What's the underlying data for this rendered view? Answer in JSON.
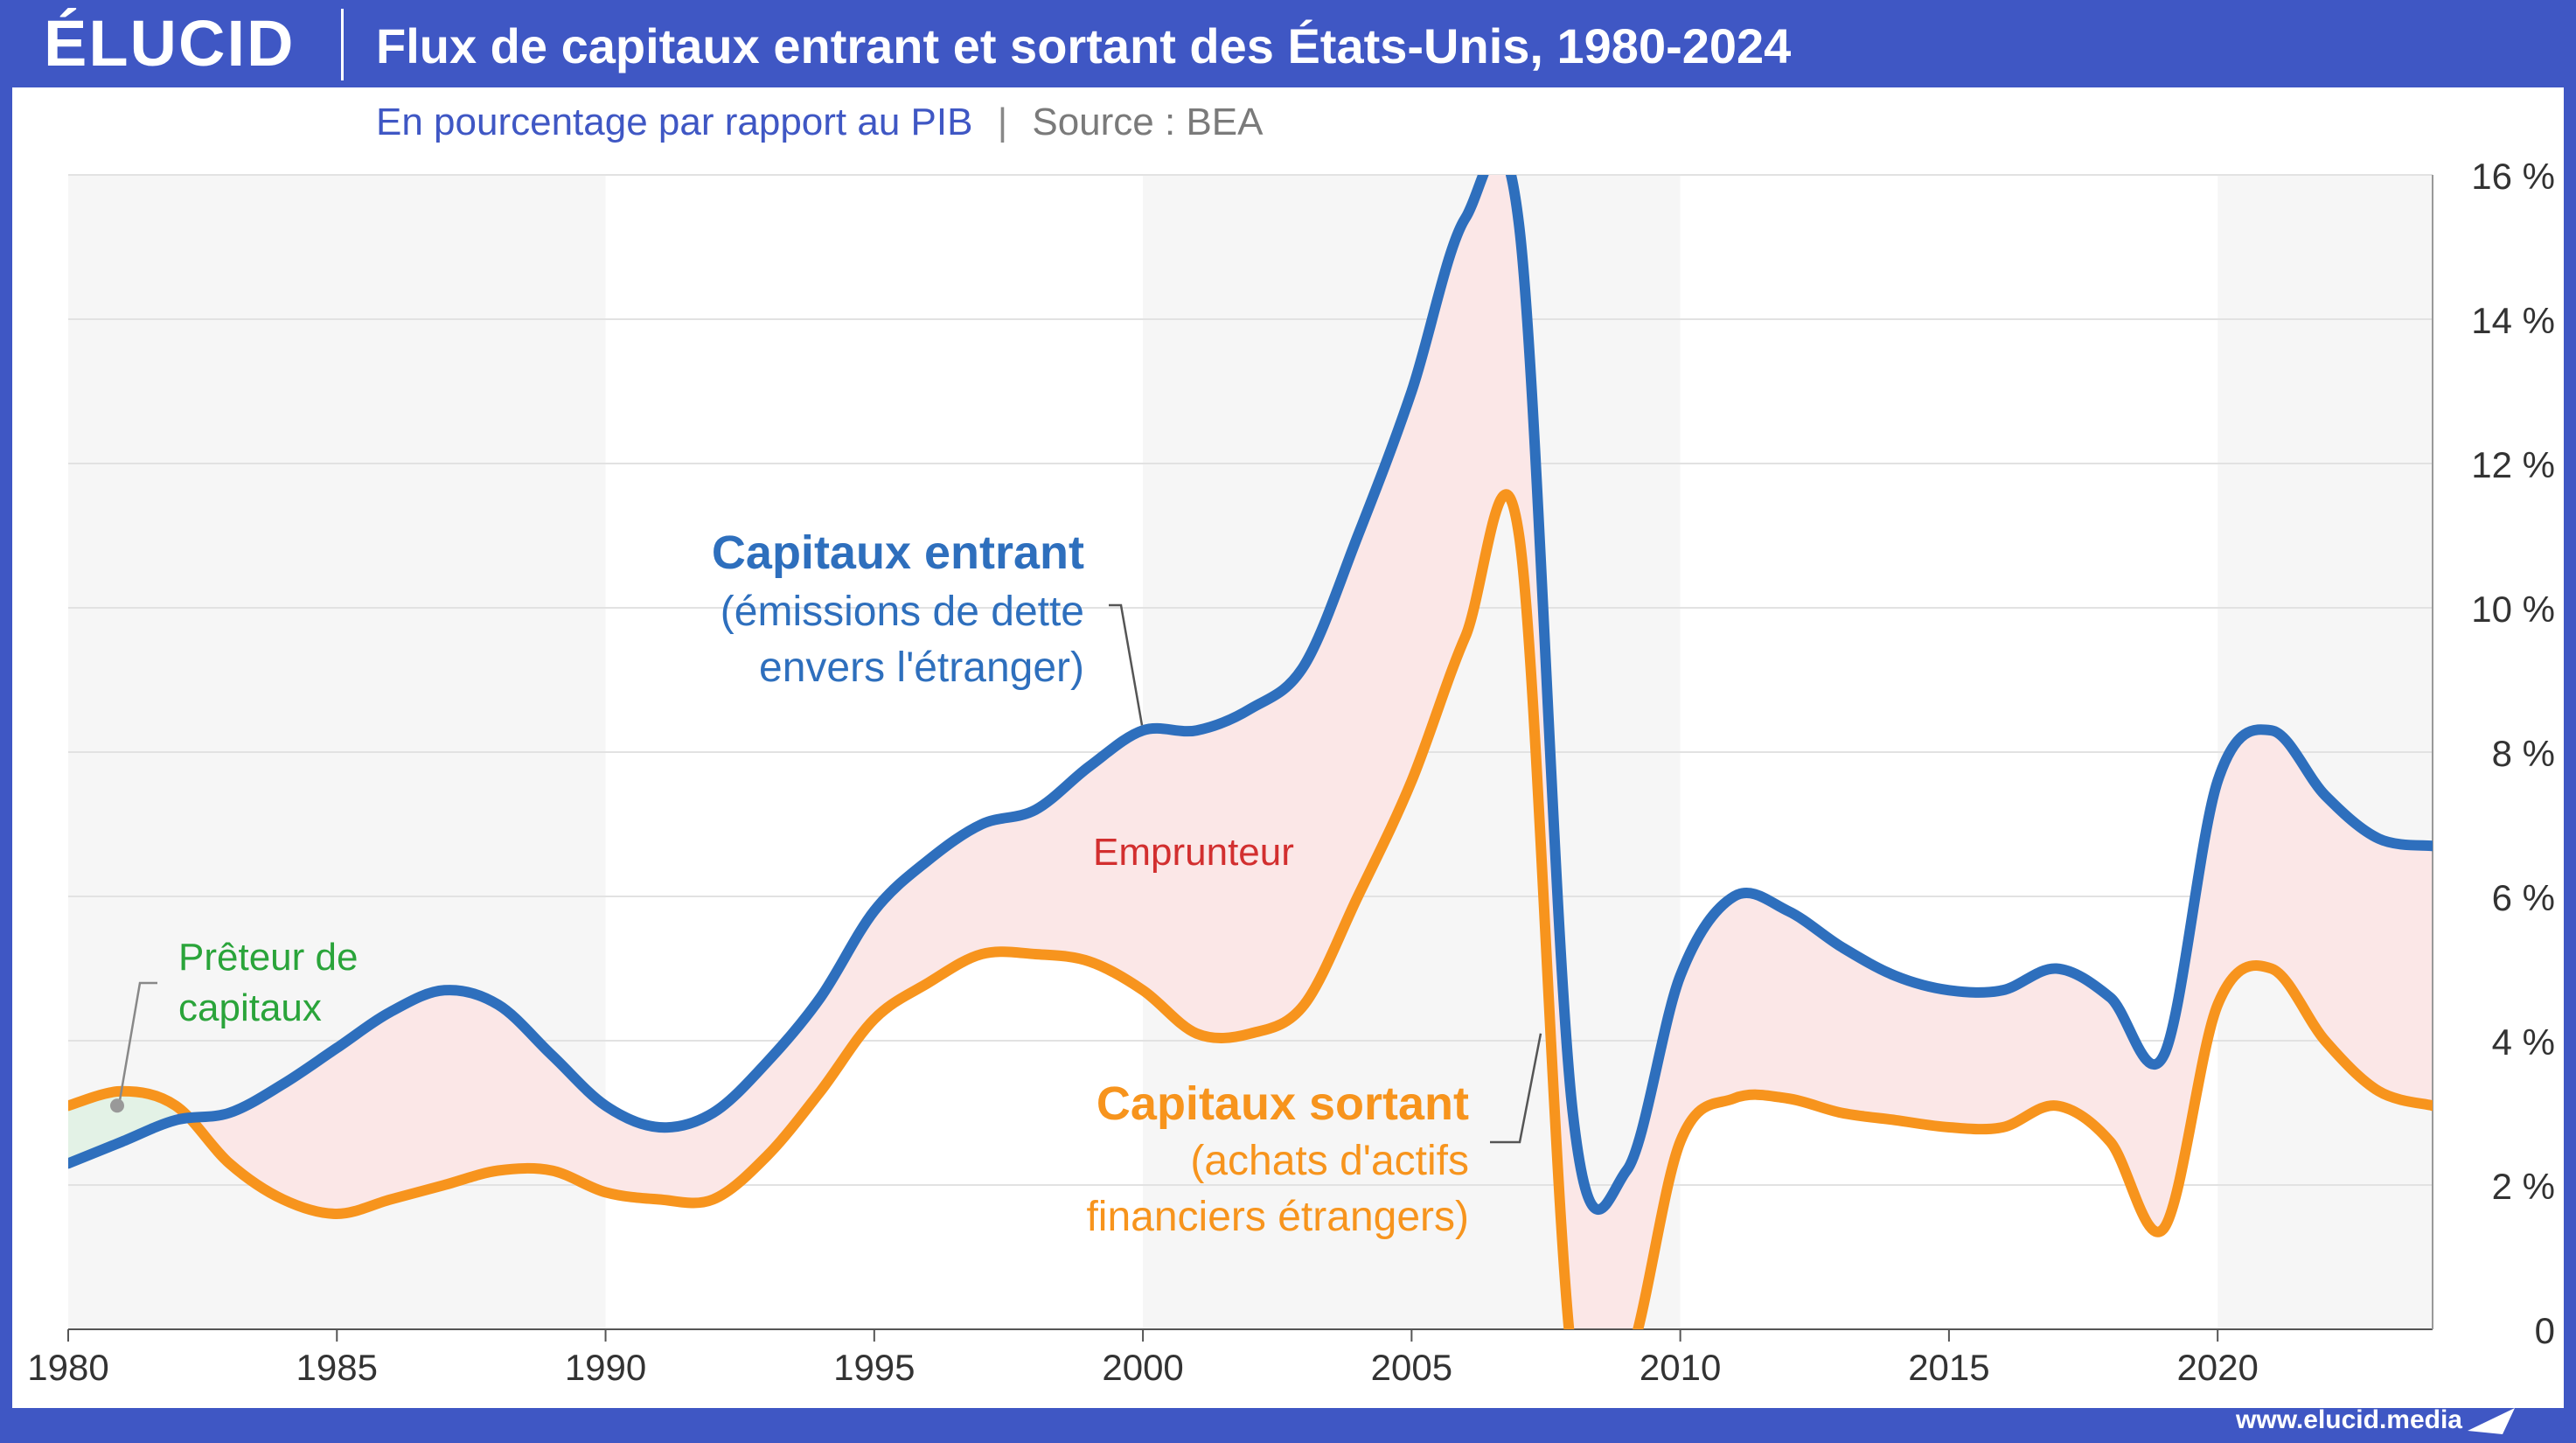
{
  "header": {
    "logo": "ÉLUCID",
    "title": "Flux de capitaux entrant et sortant des États-Unis, 1980-2024",
    "subtitle": "En pourcentage par rapport au PIB",
    "separator": "|",
    "source": "Source : BEA"
  },
  "footer": {
    "url": "www.elucid.media"
  },
  "annotations": {
    "inflow_head": "Capitaux entrant",
    "inflow_line1": "(émissions de dette",
    "inflow_line2": "envers l'étranger)",
    "outflow_head": "Capitaux sortant",
    "outflow_line1": "(achats d'actifs",
    "outflow_line2": "financiers étrangers)",
    "lender_line1": "Prêteur de",
    "lender_line2": "capitaux",
    "borrower": "Emprunteur"
  },
  "colors": {
    "brand": "#3f57c4",
    "inflow": "#2e6fbd",
    "outflow": "#f7941d",
    "lender_fill": "#e3f2e6",
    "borrower_fill": "#fbe7e7",
    "shade": "#f6f6f6",
    "grid": "#e2e2e2"
  },
  "chart_data": {
    "type": "line",
    "title": "Flux de capitaux entrant et sortant des États-Unis, 1980-2024",
    "subtitle": "En pourcentage par rapport au PIB",
    "xlabel": "",
    "ylabel": "",
    "xlim": [
      1980,
      2024
    ],
    "ylim": [
      0,
      16
    ],
    "x_ticks": [
      1980,
      1985,
      1990,
      1995,
      2000,
      2005,
      2010,
      2015,
      2020
    ],
    "y_ticks": [
      0,
      2,
      4,
      6,
      8,
      10,
      12,
      14,
      16
    ],
    "y_tick_labels": [
      "0",
      "2 %",
      "4 %",
      "6 %",
      "8 %",
      "10 %",
      "12 %",
      "14 %",
      "16 %"
    ],
    "y_axis_side": "right",
    "grid": true,
    "shaded_periods": [
      [
        1980,
        1990
      ],
      [
        2000,
        2010
      ],
      [
        2020,
        2024
      ]
    ],
    "x": [
      1980,
      1981,
      1982,
      1983,
      1984,
      1985,
      1986,
      1987,
      1988,
      1989,
      1990,
      1991,
      1992,
      1993,
      1994,
      1995,
      1996,
      1997,
      1998,
      1999,
      2000,
      2001,
      2002,
      2003,
      2004,
      2005,
      2006,
      2007,
      2008,
      2009,
      2010,
      2011,
      2012,
      2013,
      2014,
      2015,
      2016,
      2017,
      2018,
      2019,
      2020,
      2021,
      2022,
      2023,
      2024
    ],
    "series": [
      {
        "name": "Capitaux entrant",
        "values": [
          2.3,
          2.6,
          2.9,
          3.0,
          3.4,
          3.9,
          4.4,
          4.7,
          4.5,
          3.8,
          3.1,
          2.8,
          3.0,
          3.7,
          4.6,
          5.8,
          6.5,
          7.0,
          7.2,
          7.8,
          8.3,
          8.3,
          8.6,
          9.2,
          11.0,
          13.0,
          15.4,
          15.3,
          3.0,
          2.2,
          4.9,
          6.0,
          5.8,
          5.3,
          4.9,
          4.7,
          4.7,
          5.0,
          4.6,
          3.8,
          7.6,
          8.3,
          7.4,
          6.8,
          6.7
        ]
      },
      {
        "name": "Capitaux sortant",
        "values": [
          3.1,
          3.3,
          3.1,
          2.3,
          1.8,
          1.6,
          1.8,
          2.0,
          2.2,
          2.2,
          1.9,
          1.8,
          1.8,
          2.4,
          3.3,
          4.3,
          4.8,
          5.2,
          5.2,
          5.1,
          4.7,
          4.1,
          4.1,
          4.5,
          6.0,
          7.6,
          9.6,
          11.0,
          -0.5,
          -0.5,
          2.6,
          3.2,
          3.2,
          3.0,
          2.9,
          2.8,
          2.8,
          3.1,
          2.6,
          1.4,
          4.5,
          5.0,
          4.0,
          3.3,
          3.1
        ]
      }
    ],
    "regions": [
      {
        "label": "Prêteur de capitaux",
        "condition": "sortant > entrant"
      },
      {
        "label": "Emprunteur",
        "condition": "entrant > sortant"
      }
    ]
  }
}
